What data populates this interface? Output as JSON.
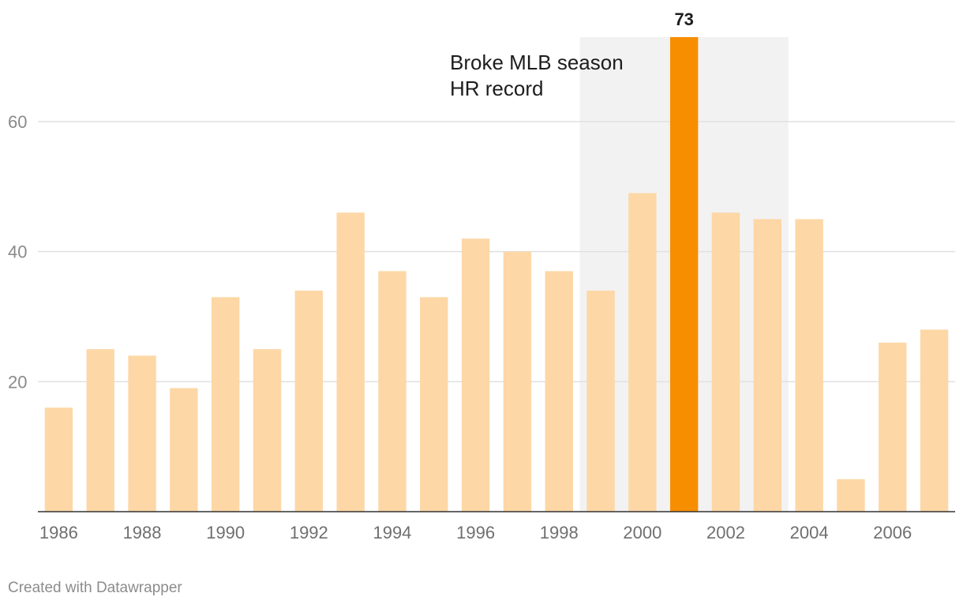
{
  "chart_data": {
    "type": "bar",
    "title": "",
    "xlabel": "",
    "ylabel": "",
    "ylim": [
      0,
      73
    ],
    "y_ticks": [
      20,
      40,
      60
    ],
    "categories": [
      "1986",
      "1987",
      "1988",
      "1989",
      "1990",
      "1991",
      "1992",
      "1993",
      "1994",
      "1995",
      "1996",
      "1997",
      "1998",
      "1999",
      "2000",
      "2001",
      "2002",
      "2003",
      "2004",
      "2005",
      "2006",
      "2007"
    ],
    "x_tick_labels": [
      "1986",
      "1988",
      "1990",
      "1992",
      "1994",
      "1996",
      "1998",
      "2000",
      "2002",
      "2004",
      "2006"
    ],
    "values": [
      16,
      25,
      24,
      19,
      33,
      25,
      34,
      46,
      37,
      33,
      42,
      40,
      37,
      34,
      49,
      73,
      46,
      45,
      45,
      5,
      26,
      28
    ],
    "highlight": {
      "category": "2001",
      "value": 73,
      "label": "73"
    },
    "shaded_range": [
      "1999",
      "2003"
    ],
    "annotation": [
      "Broke MLB season",
      "HR record"
    ],
    "grid": true
  },
  "colors": {
    "bar": "#fdd7a6",
    "highlight_bar": "#f78e00",
    "shade": "#f2f2f2",
    "grid": "#e0e0e0",
    "baseline": "#333333"
  },
  "footer": {
    "credit": "Created with Datawrapper"
  }
}
